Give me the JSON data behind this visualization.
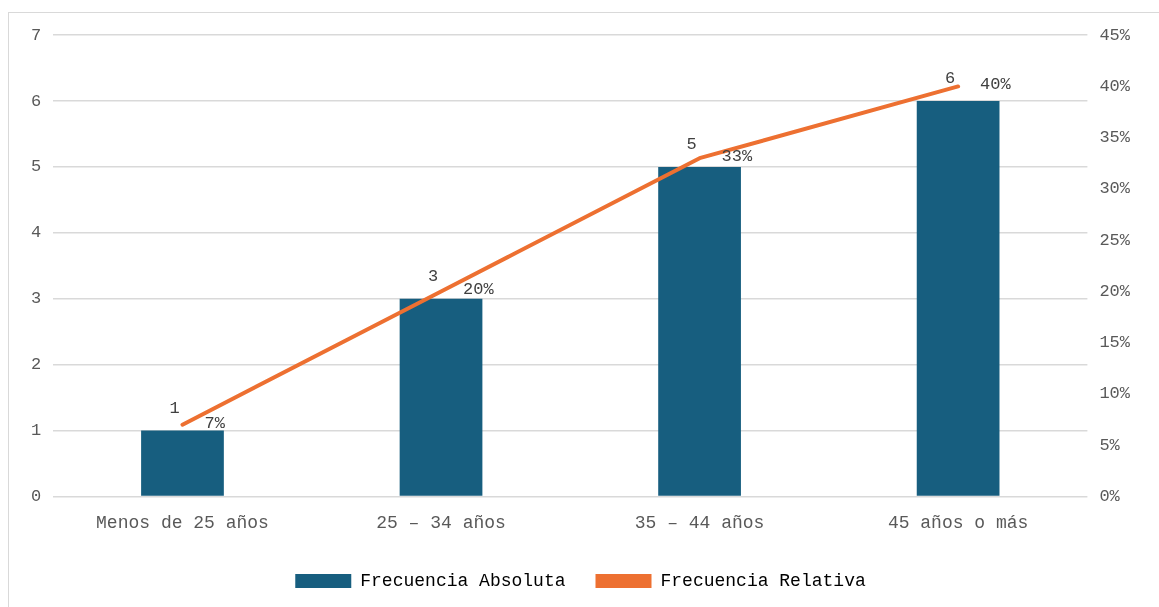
{
  "chart_data": {
    "type": "bar",
    "categories": [
      "Menos de 25 años",
      "25 – 34 años",
      "35 – 44 años",
      "45 años o más"
    ],
    "series": [
      {
        "name": "Frecuencia Absoluta",
        "color": "#175e7f",
        "values": [
          1,
          3,
          5,
          6
        ],
        "value_labels": [
          "1",
          "3",
          "5",
          "6"
        ]
      },
      {
        "name": "Frecuencia Relativa",
        "type": "line",
        "axis": "y2",
        "color": "#ed7031",
        "values": [
          7,
          20,
          33,
          40
        ],
        "value_labels": [
          "7%",
          "20%",
          "33%",
          "40%"
        ]
      }
    ],
    "ylim": [
      0,
      7
    ],
    "yticks": [
      0,
      1,
      2,
      3,
      4,
      5,
      6,
      7
    ],
    "y2lim": [
      0,
      45
    ],
    "y2ticks": [
      {
        "value": 0,
        "label": "0%"
      },
      {
        "value": 5,
        "label": "5%"
      },
      {
        "value": 10,
        "label": "10%"
      },
      {
        "value": 15,
        "label": "15%"
      },
      {
        "value": 20,
        "label": "20%"
      },
      {
        "value": 25,
        "label": "25%"
      },
      {
        "value": 30,
        "label": "30%"
      },
      {
        "value": 35,
        "label": "35%"
      },
      {
        "value": 40,
        "label": "40%"
      },
      {
        "value": 45,
        "label": "45%"
      }
    ],
    "grid": "y",
    "legend": "bottom",
    "marker": "none",
    "line_style": "solid"
  }
}
